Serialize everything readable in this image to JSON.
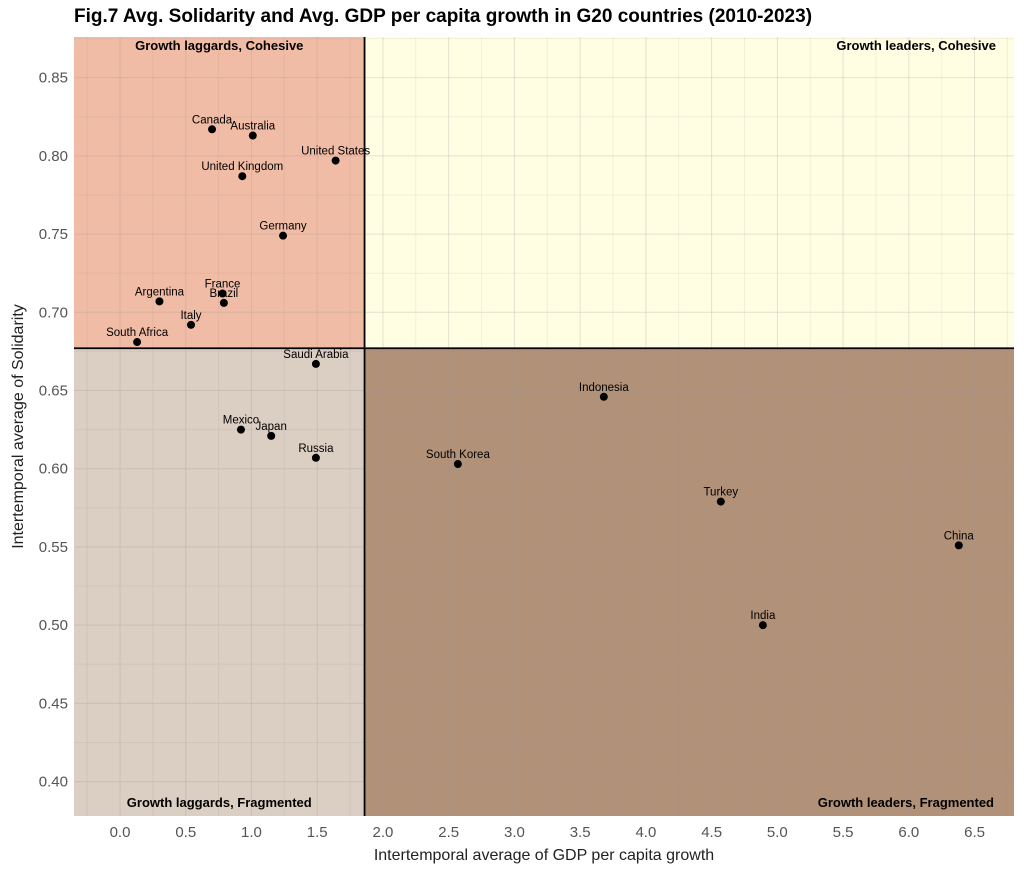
{
  "chart_data": {
    "type": "scatter",
    "title": "Fig.7 Avg. Solidarity and Avg. GDP per capita growth in G20 countries (2010-2023)",
    "xlabel": "Intertemporal average of GDP per capita growth",
    "ylabel": "Intertemporal average of Solidarity",
    "xlim": [
      -0.35,
      6.8
    ],
    "ylim": [
      0.378,
      0.876
    ],
    "x_ticks": [
      "0.0",
      "0.5",
      "1.0",
      "1.5",
      "2.0",
      "2.5",
      "3.0",
      "3.5",
      "4.0",
      "4.5",
      "5.0",
      "5.5",
      "6.0",
      "6.5"
    ],
    "y_ticks": [
      "0.40",
      "0.45",
      "0.50",
      "0.55",
      "0.60",
      "0.65",
      "0.70",
      "0.75",
      "0.80",
      "0.85"
    ],
    "grid": true,
    "reference_lines": {
      "x": 1.86,
      "y": 0.677
    },
    "quadrants": [
      {
        "name": "Growth laggards, Cohesive",
        "color": "#f0bca5"
      },
      {
        "name": "Growth leaders, Cohesive",
        "color": "#fffde2"
      },
      {
        "name": "Growth laggards, Fragmented",
        "color": "#dbcec3"
      },
      {
        "name": "Growth leaders, Fragmented",
        "color": "#b29179"
      }
    ],
    "points": [
      {
        "label": "Canada",
        "x": 0.7,
        "y": 0.817
      },
      {
        "label": "Australia",
        "x": 1.01,
        "y": 0.813
      },
      {
        "label": "United States",
        "x": 1.64,
        "y": 0.797
      },
      {
        "label": "United Kingdom",
        "x": 0.93,
        "y": 0.787
      },
      {
        "label": "Germany",
        "x": 1.24,
        "y": 0.749
      },
      {
        "label": "France",
        "x": 0.78,
        "y": 0.712
      },
      {
        "label": "Brazil",
        "x": 0.79,
        "y": 0.706
      },
      {
        "label": "Argentina",
        "x": 0.3,
        "y": 0.707
      },
      {
        "label": "Italy",
        "x": 0.54,
        "y": 0.692
      },
      {
        "label": "South Africa",
        "x": 0.13,
        "y": 0.681
      },
      {
        "label": "Saudi Arabia",
        "x": 1.49,
        "y": 0.667
      },
      {
        "label": "Mexico",
        "x": 0.92,
        "y": 0.625
      },
      {
        "label": "Japan",
        "x": 1.15,
        "y": 0.621
      },
      {
        "label": "Russia",
        "x": 1.49,
        "y": 0.607
      },
      {
        "label": "South Korea",
        "x": 2.57,
        "y": 0.603
      },
      {
        "label": "Indonesia",
        "x": 3.68,
        "y": 0.646
      },
      {
        "label": "Turkey",
        "x": 4.57,
        "y": 0.579
      },
      {
        "label": "China",
        "x": 6.38,
        "y": 0.551
      },
      {
        "label": "India",
        "x": 4.89,
        "y": 0.5
      }
    ]
  }
}
